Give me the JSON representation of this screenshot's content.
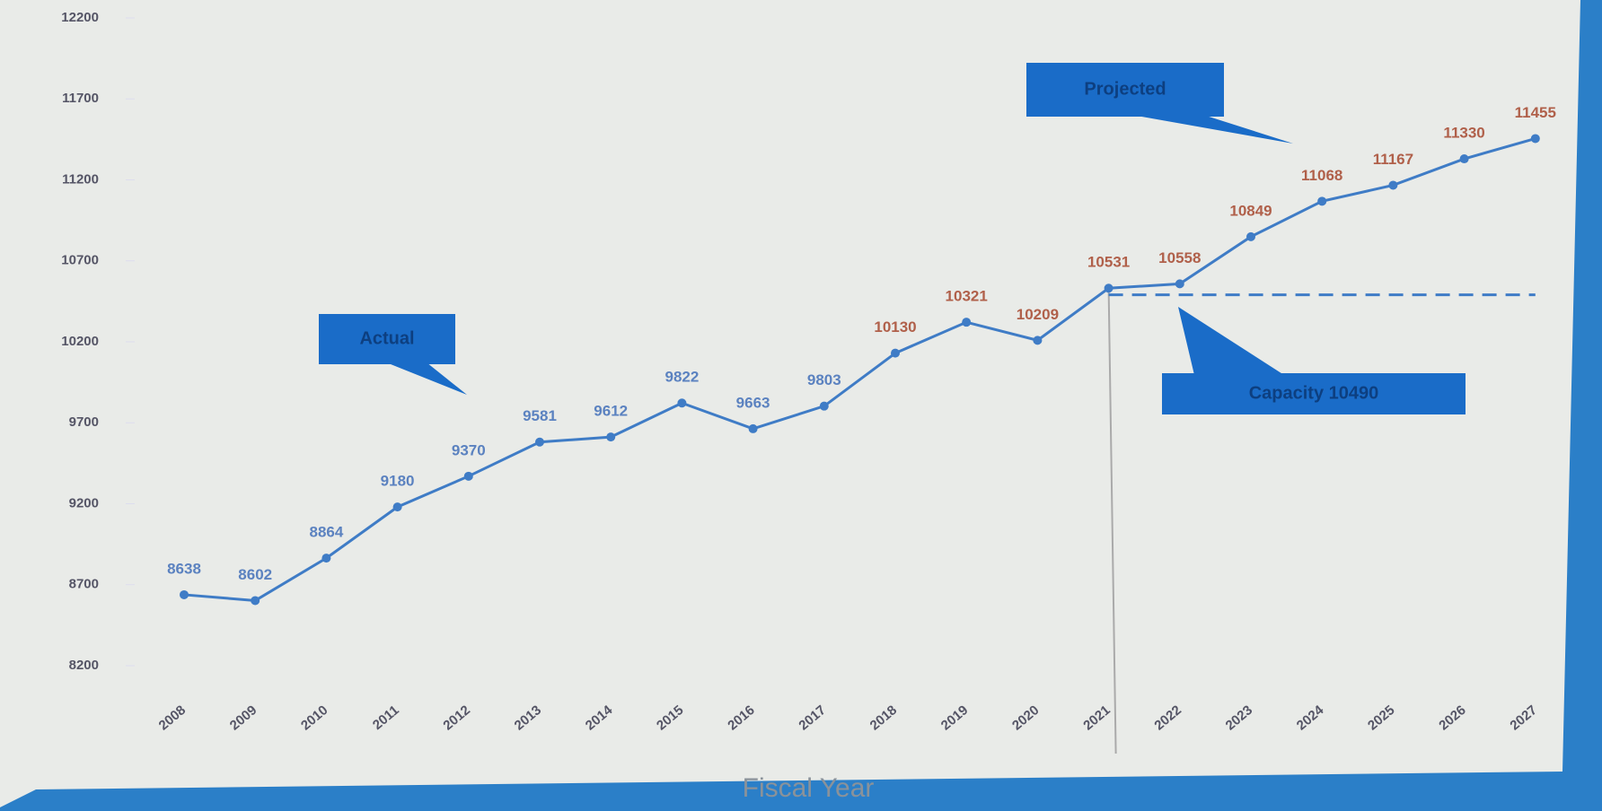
{
  "chart_data": {
    "type": "line",
    "x_label": "Fiscal Year",
    "categories": [
      "2008",
      "2009",
      "2010",
      "2011",
      "2012",
      "2013",
      "2014",
      "2015",
      "2016",
      "2017",
      "2018",
      "2019",
      "2020",
      "2021",
      "2022",
      "2023",
      "2024",
      "2025",
      "2026",
      "2027"
    ],
    "series": [
      {
        "color": "#3f7cc6",
        "values": [
          8638,
          8602,
          8864,
          9180,
          9370,
          9581,
          9612,
          9822,
          9663,
          9803,
          10130,
          10321,
          10209,
          10531,
          10558,
          10849,
          11068,
          11167,
          11330,
          11455
        ],
        "label_colors": [
          "#5b82c0",
          "#5b82c0",
          "#5b82c0",
          "#5b82c0",
          "#5b82c0",
          "#5b82c0",
          "#5b82c0",
          "#5b82c0",
          "#5b82c0",
          "#5b82c0",
          "#b0604a",
          "#b0604a",
          "#b0604a",
          "#b0604a",
          "#b0604a",
          "#b0604a",
          "#b0604a",
          "#b0604a",
          "#b0604a",
          "#b0604a"
        ]
      }
    ],
    "ylim": [
      8200,
      12200
    ],
    "yticks": [
      8200,
      8700,
      9200,
      9700,
      10200,
      10700,
      11200,
      11700,
      12200
    ],
    "capacity": {
      "value": 10490,
      "label": "Capacity 10490",
      "color": "#3f7cc6"
    },
    "annotations": [
      "Actual",
      "Projected"
    ],
    "divider_at": "2021"
  }
}
